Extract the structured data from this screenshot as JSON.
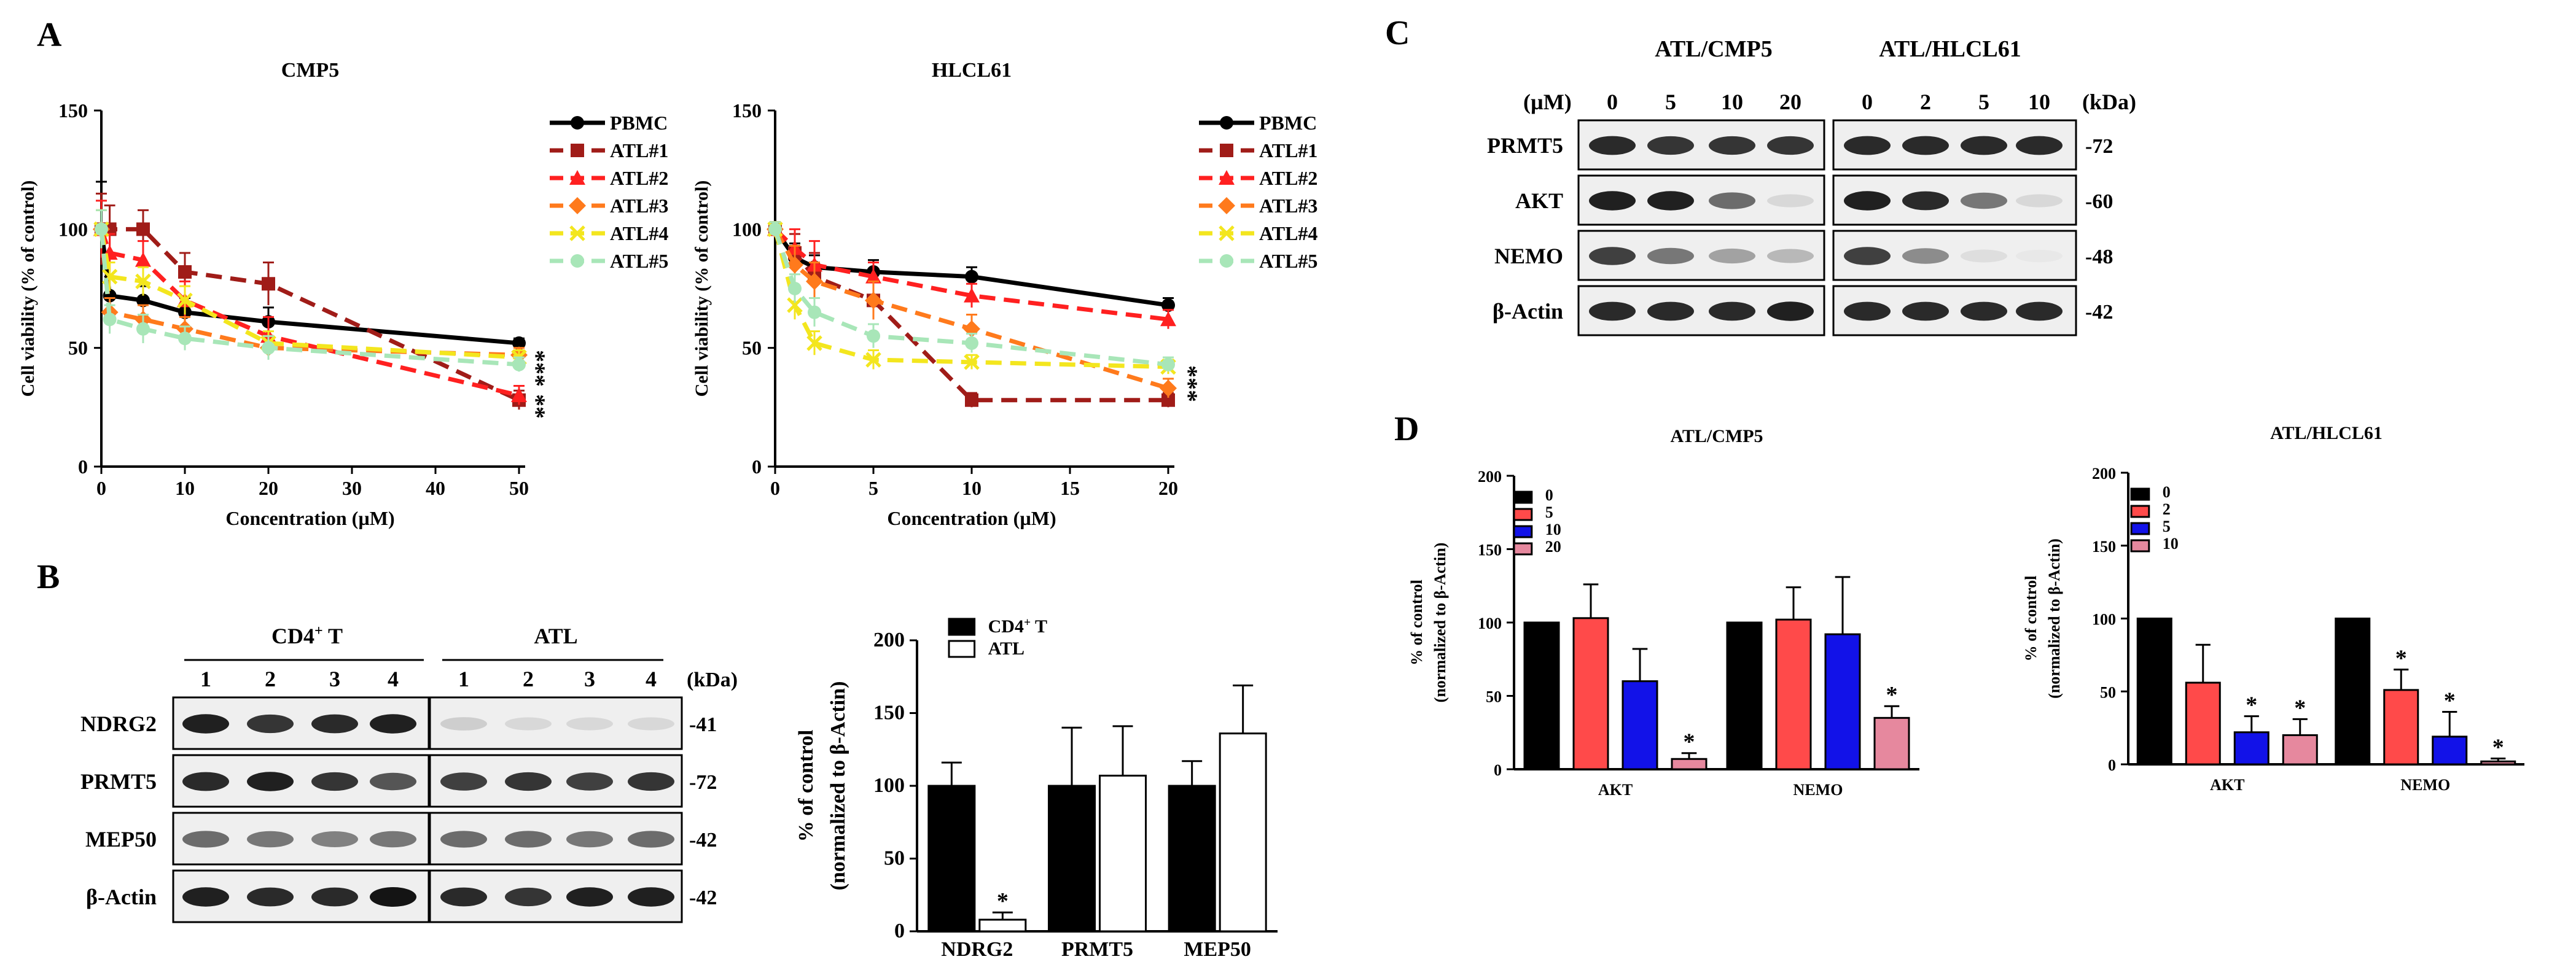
{
  "figure_labels": {
    "A": "A",
    "B": "B",
    "C": "C",
    "D": "D"
  },
  "panel_A": {
    "x_label": "Concentration (µM)",
    "y_label": "Cell viability (% of control)",
    "legend": [
      "PBMC",
      "ATL#1",
      "ATL#2",
      "ATL#3",
      "ATL#4",
      "ATL#5"
    ],
    "significance": [
      "***",
      "**"
    ]
  },
  "panel_B": {
    "blot": {
      "group_labels": [
        "CD4",
        "+",
        " T",
        "ATL"
      ],
      "lane_labels": [
        "1",
        "2",
        "3",
        "4",
        "1",
        "2",
        "3",
        "4"
      ],
      "kda_header": "(kDa)",
      "rows": [
        {
          "name": "NDRG2",
          "kda": "-41"
        },
        {
          "name": "PRMT5",
          "kda": "-72"
        },
        {
          "name": "MEP50",
          "kda": "-42"
        },
        {
          "name": "β-Actin",
          "kda": "-42"
        }
      ]
    },
    "sig": "*"
  },
  "panel_C": {
    "groups": [
      "ATL/CMP5",
      "ATL/HLCL61"
    ],
    "unit": "(µM)",
    "conc_cmp5": [
      "0",
      "5",
      "10",
      "20"
    ],
    "conc_hlcl61": [
      "0",
      "2",
      "5",
      "10"
    ],
    "kda_header": "(kDa)",
    "rows": [
      {
        "name": "PRMT5",
        "kda": "-72"
      },
      {
        "name": "AKT",
        "kda": "-60"
      },
      {
        "name": "NEMO",
        "kda": "-48"
      },
      {
        "name": "β-Actin",
        "kda": "-42"
      }
    ]
  },
  "chart_data": [
    {
      "id": "A1",
      "type": "line",
      "title": "CMP5",
      "xlabel": "Concentration (µM)",
      "ylabel": "Cell viability (% of control)",
      "xlim": [
        0,
        50
      ],
      "ylim": [
        0,
        150
      ],
      "xticks": [
        0,
        10,
        20,
        30,
        40,
        50
      ],
      "yticks": [
        0,
        50,
        100,
        150
      ],
      "series": [
        {
          "name": "PBMC",
          "color": "#000000",
          "dashed": false,
          "marker": "circle",
          "x": [
            0,
            1,
            5,
            10,
            20,
            50
          ],
          "y": [
            100,
            72,
            70,
            65,
            61,
            52
          ],
          "err": [
            20,
            8,
            6,
            6,
            6,
            2
          ]
        },
        {
          "name": "ATL#1",
          "color": "#a01c18",
          "dashed": true,
          "marker": "square",
          "x": [
            0,
            1,
            5,
            10,
            20,
            50
          ],
          "y": [
            100,
            100,
            100,
            82,
            77,
            28
          ],
          "err": [
            15,
            10,
            8,
            8,
            9,
            4
          ]
        },
        {
          "name": "ATL#2",
          "color": "#ff2020",
          "dashed": true,
          "marker": "triangle",
          "x": [
            0,
            1,
            5,
            10,
            20,
            50
          ],
          "y": [
            100,
            90,
            87,
            70,
            55,
            30
          ],
          "err": [
            12,
            8,
            8,
            8,
            8,
            4
          ]
        },
        {
          "name": "ATL#3",
          "color": "#ff7a1c",
          "dashed": true,
          "marker": "diamond",
          "x": [
            0,
            1,
            5,
            10,
            20,
            50
          ],
          "y": [
            100,
            65,
            62,
            58,
            50,
            47
          ],
          "err": [
            8,
            6,
            6,
            5,
            5,
            3
          ]
        },
        {
          "name": "ATL#4",
          "color": "#f3e61e",
          "dashed": true,
          "marker": "cross",
          "x": [
            0,
            1,
            5,
            10,
            20,
            50
          ],
          "y": [
            100,
            80,
            78,
            70,
            52,
            46
          ],
          "err": [
            8,
            6,
            6,
            6,
            5,
            3
          ]
        },
        {
          "name": "ATL#5",
          "color": "#a8e6b8",
          "dashed": true,
          "marker": "circle",
          "x": [
            0,
            1,
            5,
            10,
            20,
            50
          ],
          "y": [
            100,
            62,
            58,
            54,
            50,
            43
          ],
          "err": [
            8,
            6,
            6,
            5,
            5,
            3
          ]
        }
      ]
    },
    {
      "id": "A2",
      "type": "line",
      "title": "HLCL61",
      "xlabel": "Concentration (µM)",
      "ylabel": "Cell viability (% of control)",
      "xlim": [
        0,
        20
      ],
      "ylim": [
        0,
        150
      ],
      "xticks": [
        0,
        5,
        10,
        15,
        20
      ],
      "yticks": [
        0,
        50,
        100,
        150
      ],
      "series": [
        {
          "name": "PBMC",
          "color": "#000000",
          "dashed": false,
          "marker": "circle",
          "x": [
            0,
            1,
            2,
            5,
            10,
            20
          ],
          "y": [
            100,
            88,
            84,
            82,
            80,
            68
          ],
          "err": [
            3,
            6,
            5,
            5,
            4,
            3
          ]
        },
        {
          "name": "ATL#1",
          "color": "#a01c18",
          "dashed": true,
          "marker": "square",
          "x": [
            0,
            1,
            2,
            5,
            10,
            20
          ],
          "y": [
            100,
            90,
            80,
            70,
            28,
            28
          ],
          "err": [
            3,
            8,
            10,
            8,
            3,
            3
          ]
        },
        {
          "name": "ATL#2",
          "color": "#ff2020",
          "dashed": true,
          "marker": "triangle",
          "x": [
            0,
            1,
            2,
            5,
            10,
            20
          ],
          "y": [
            100,
            92,
            85,
            80,
            72,
            62
          ],
          "err": [
            3,
            8,
            10,
            6,
            5,
            4
          ]
        },
        {
          "name": "ATL#3",
          "color": "#ff7a1c",
          "dashed": true,
          "marker": "diamond",
          "x": [
            0,
            1,
            2,
            5,
            10,
            20
          ],
          "y": [
            100,
            85,
            78,
            70,
            58,
            33
          ],
          "err": [
            3,
            8,
            8,
            8,
            6,
            4
          ]
        },
        {
          "name": "ATL#4",
          "color": "#f3e61e",
          "dashed": true,
          "marker": "cross",
          "x": [
            0,
            1,
            2,
            5,
            10,
            20
          ],
          "y": [
            100,
            68,
            52,
            45,
            44,
            42
          ],
          "err": [
            3,
            6,
            5,
            4,
            3,
            3
          ]
        },
        {
          "name": "ATL#5",
          "color": "#a8e6b8",
          "dashed": true,
          "marker": "circle",
          "x": [
            0,
            1,
            2,
            5,
            10,
            20
          ],
          "y": [
            100,
            75,
            65,
            55,
            52,
            43
          ],
          "err": [
            3,
            6,
            6,
            5,
            4,
            3
          ]
        }
      ]
    },
    {
      "id": "B",
      "type": "bar",
      "title": "",
      "ylabel": "% of control (normalized to β-Actin)",
      "ylim": [
        0,
        200
      ],
      "yticks": [
        0,
        50,
        100,
        150,
        200
      ],
      "categories": [
        "NDRG2",
        "PRMT5",
        "MEP50"
      ],
      "series": [
        {
          "name": "CD4",
          "name_sup": "+",
          "name_suffix": " T",
          "color": "#000000",
          "values": [
            100,
            100,
            100
          ],
          "err": [
            16,
            40,
            17
          ]
        },
        {
          "name": "ATL",
          "color": "#ffffff",
          "values": [
            8,
            107,
            136
          ],
          "err": [
            5,
            34,
            33
          ]
        }
      ],
      "significance": [
        {
          "category": 0,
          "series": 1,
          "label": "*"
        }
      ]
    },
    {
      "id": "D1",
      "type": "bar",
      "title": "ATL/CMP5",
      "ylabel": [
        "% of control",
        "(normalized to β-Actin)"
      ],
      "ylim": [
        0,
        200
      ],
      "yticks": [
        0,
        50,
        100,
        150,
        200
      ],
      "categories": [
        "AKT",
        "NEMO"
      ],
      "series": [
        {
          "name": "0",
          "color": "#000000",
          "values": [
            100,
            100
          ],
          "err": [
            0,
            0
          ]
        },
        {
          "name": "5",
          "color": "#ff4a4a",
          "values": [
            103,
            102
          ],
          "err": [
            23,
            22
          ]
        },
        {
          "name": "10",
          "color": "#1212e8",
          "values": [
            60,
            92
          ],
          "err": [
            22,
            39
          ]
        },
        {
          "name": "20",
          "color": "#e6889e",
          "values": [
            7,
            35
          ],
          "err": [
            4,
            8
          ]
        }
      ],
      "significance": [
        {
          "category": 0,
          "series": 3,
          "label": "*"
        },
        {
          "category": 1,
          "series": 3,
          "label": "*"
        }
      ]
    },
    {
      "id": "D2",
      "type": "bar",
      "title": "ATL/HLCL61",
      "ylabel": [
        "% of control",
        "(normalized to β-Actin)"
      ],
      "ylim": [
        0,
        200
      ],
      "yticks": [
        0,
        50,
        100,
        150,
        200
      ],
      "categories": [
        "AKT",
        "NEMO"
      ],
      "series": [
        {
          "name": "0",
          "color": "#000000",
          "values": [
            100,
            100
          ],
          "err": [
            0,
            0
          ]
        },
        {
          "name": "2",
          "color": "#ff4a4a",
          "values": [
            56,
            51
          ],
          "err": [
            26,
            14
          ]
        },
        {
          "name": "5",
          "color": "#1212e8",
          "values": [
            22,
            19
          ],
          "err": [
            11,
            17
          ]
        },
        {
          "name": "10",
          "color": "#e6889e",
          "values": [
            20,
            2
          ],
          "err": [
            11,
            2
          ]
        }
      ],
      "significance": [
        {
          "category": 0,
          "series": 2,
          "label": "*"
        },
        {
          "category": 0,
          "series": 3,
          "label": "*"
        },
        {
          "category": 1,
          "series": 1,
          "label": "*"
        },
        {
          "category": 1,
          "series": 2,
          "label": "*"
        },
        {
          "category": 1,
          "series": 3,
          "label": "*"
        }
      ]
    }
  ]
}
